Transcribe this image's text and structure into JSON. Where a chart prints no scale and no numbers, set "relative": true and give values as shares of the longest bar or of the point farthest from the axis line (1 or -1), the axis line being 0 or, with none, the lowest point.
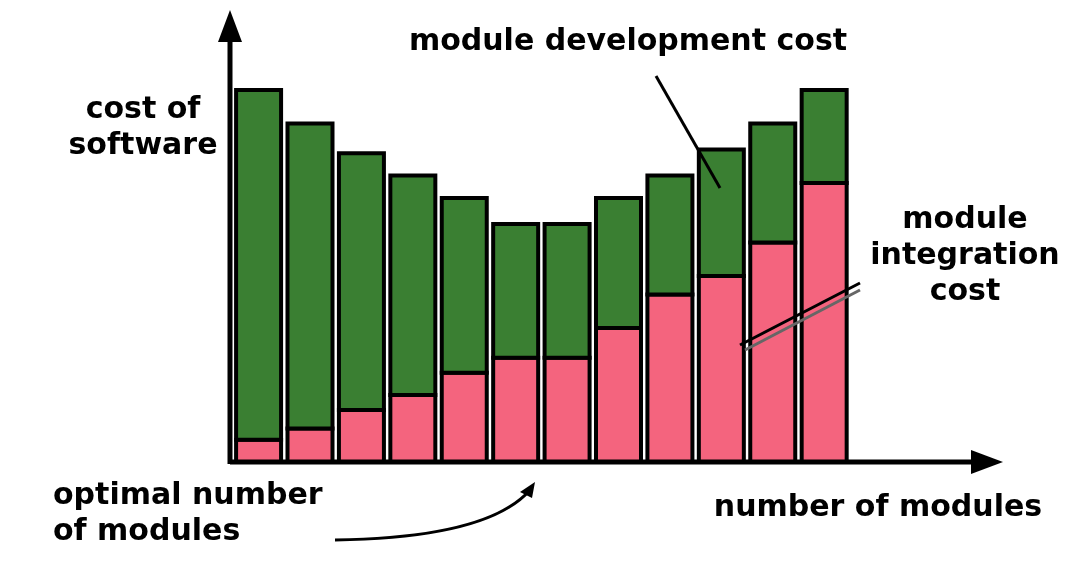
{
  "chart_data": {
    "type": "bar",
    "stacked": true,
    "relative": true,
    "ylabel": "cost of software",
    "xlabel": "number of modules",
    "annotations": [
      "optimal number of modules"
    ],
    "categories": [
      null,
      null,
      null,
      null,
      null,
      null,
      null,
      null,
      null,
      null,
      null,
      null
    ],
    "series": [
      {
        "name": "module integration cost",
        "color": "#f4647e",
        "values": [
          0.06,
          0.09,
          0.14,
          0.18,
          0.24,
          0.28,
          0.28,
          0.36,
          0.45,
          0.5,
          0.59,
          0.75
        ]
      },
      {
        "name": "module development cost",
        "color": "#3a7f32",
        "values": [
          0.94,
          0.82,
          0.69,
          0.59,
          0.47,
          0.36,
          0.36,
          0.35,
          0.32,
          0.34,
          0.32,
          0.25
        ]
      }
    ]
  }
}
